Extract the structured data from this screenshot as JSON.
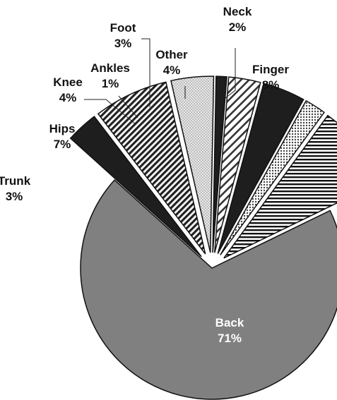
{
  "chart_data": {
    "type": "pie",
    "title": "",
    "slices": [
      {
        "label": "Back",
        "value": 71,
        "pct_label": "71%",
        "pattern": "solid-gray",
        "color": "#808080"
      },
      {
        "label": "Trunk",
        "value": 3,
        "pct_label": "3%",
        "pattern": "solid-dark",
        "color": "#1e1e1e"
      },
      {
        "label": "Hips",
        "value": 7,
        "pct_label": "7%",
        "pattern": "diagonal-dense",
        "color": "#222222"
      },
      {
        "label": "Knee",
        "value": 4,
        "pct_label": "4%",
        "pattern": "dotted-light",
        "color": "#bdbdbd"
      },
      {
        "label": "Ankles",
        "value": 1,
        "pct_label": "1%",
        "pattern": "solid-dark",
        "color": "#1e1e1e"
      },
      {
        "label": "Foot",
        "value": 3,
        "pct_label": "3%",
        "pattern": "diagonal-wide",
        "color": "#333333"
      },
      {
        "label": "Other",
        "value": 4,
        "pct_label": "4%",
        "pattern": "solid-dark",
        "color": "#1e1e1e"
      },
      {
        "label": "Neck",
        "value": 2,
        "pct_label": "2%",
        "pattern": "dots",
        "color": "#555555"
      },
      {
        "label": "Finger",
        "value": 8,
        "pct_label": "8%",
        "pattern": "horizontal",
        "color": "#111111"
      }
    ],
    "exploded": [
      "Trunk",
      "Hips",
      "Knee",
      "Ankles",
      "Foot",
      "Other",
      "Neck",
      "Finger"
    ],
    "legend": "none",
    "label_style": "callout-with-leader-lines"
  }
}
